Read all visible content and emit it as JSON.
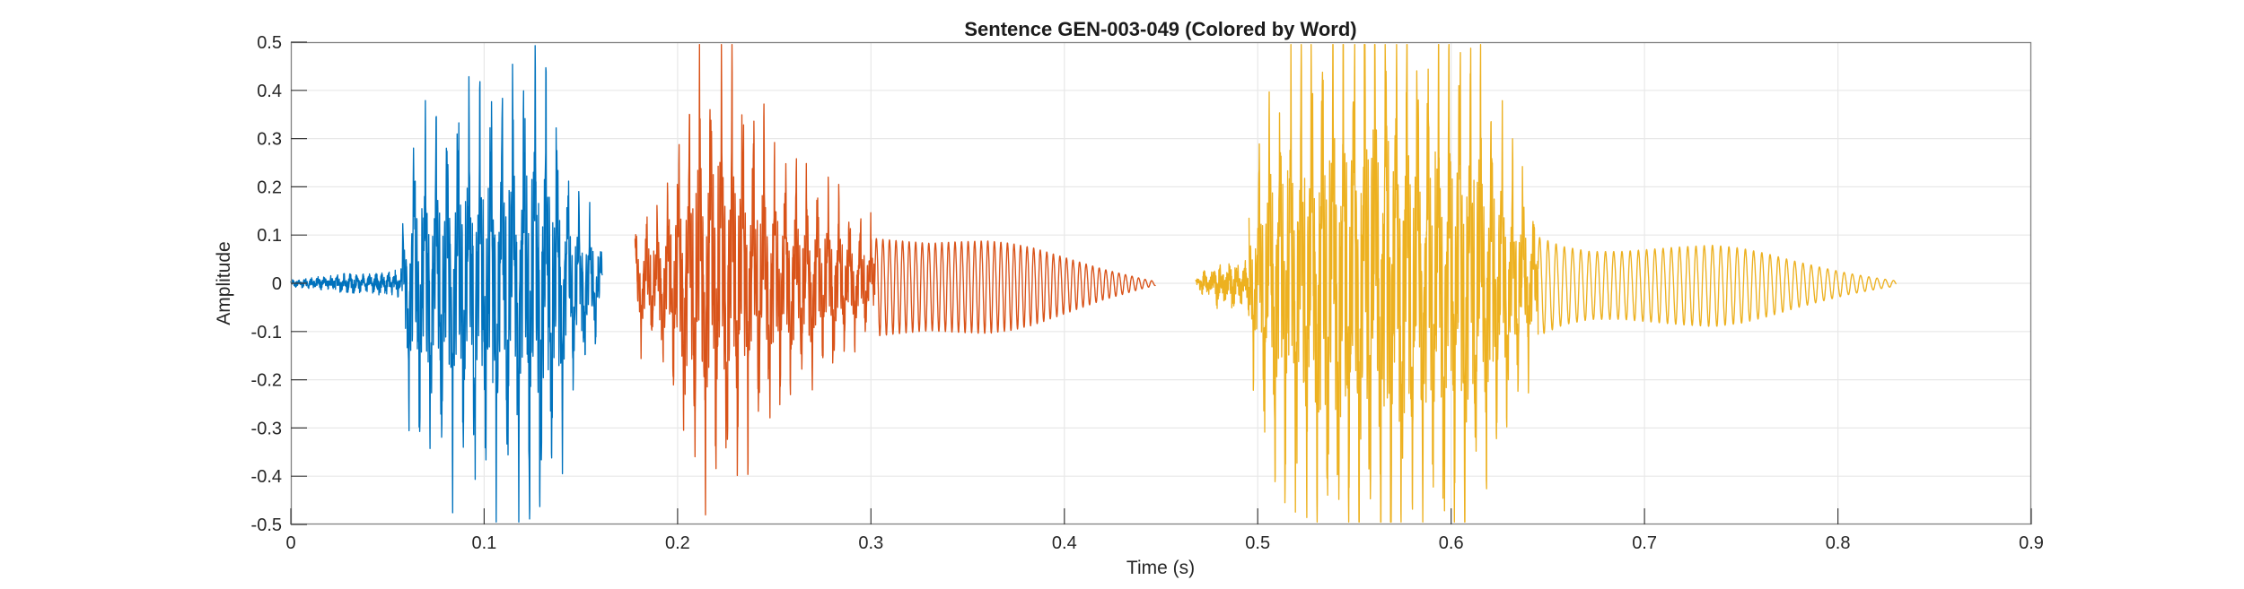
{
  "title": "Sentence GEN-003-049 (Colored by Word)",
  "axes": {
    "xlabel": "Time (s)",
    "ylabel": "Amplitude",
    "xlim": [
      0,
      0.9
    ],
    "ylim": [
      -0.5,
      0.5
    ],
    "xtick_values": [
      0,
      0.1,
      0.2,
      0.3,
      0.4,
      0.5,
      0.6,
      0.7,
      0.8,
      0.9
    ],
    "xtick_labels": [
      "0",
      "0.1",
      "0.2",
      "0.3",
      "0.4",
      "0.5",
      "0.6",
      "0.7",
      "0.8",
      "0.9"
    ],
    "ytick_values": [
      -0.5,
      -0.4,
      -0.3,
      -0.2,
      -0.1,
      0,
      0.1,
      0.2,
      0.3,
      0.4,
      0.5
    ],
    "ytick_labels": [
      "-0.5",
      "-0.4",
      "-0.3",
      "-0.2",
      "-0.1",
      "0",
      "0.1",
      "0.2",
      "0.3",
      "0.4",
      "0.5"
    ],
    "grid": "on"
  },
  "colors": {
    "background": "#ffffff",
    "box": "#818181",
    "tick": "#3b3b3b",
    "grid": "#e8e8e8",
    "label": "#262626",
    "title": "#1c1c1c",
    "word_1": "#0072BD",
    "word_2": "#D95319",
    "word_3": "#EDB120"
  },
  "chart_data": {
    "type": "line",
    "subtype": "audio-waveform",
    "title": "Sentence GEN-003-049 (Colored by Word)",
    "xlabel": "Time (s)",
    "ylabel": "Amplitude",
    "xlim": [
      0,
      0.9
    ],
    "ylim": [
      -0.5,
      0.5
    ],
    "grid": "on",
    "legend": "none",
    "sample_rate_render": 9000,
    "series": [
      {
        "name": "word_1",
        "color": "#0072BD",
        "t_start": 0.0,
        "t_end": 0.161,
        "peak_amplitude": 0.39,
        "min_amplitude": -0.41,
        "parts": [
          {
            "kind": "noise",
            "t0": 0.0,
            "t1": 0.057,
            "f": 300,
            "phase": 0.2,
            "seed": 11,
            "neg": 1.0,
            "env": [
              [
                0.0,
                0.006
              ],
              [
                0.008,
                0.009
              ],
              [
                0.015,
                0.012
              ],
              [
                0.022,
                0.016
              ],
              [
                0.03,
                0.019
              ],
              [
                0.038,
                0.016
              ],
              [
                0.045,
                0.02
              ],
              [
                0.051,
                0.022
              ],
              [
                0.057,
                0.028
              ]
            ]
          },
          {
            "kind": "voiced",
            "t0": 0.057,
            "t1": 0.161,
            "f0": 176,
            "phase": 0.4,
            "seed": 23,
            "neg": 1.06,
            "env": [
              [
                0.057,
                0.05
              ],
              [
                0.06,
                0.18
              ],
              [
                0.064,
                0.27
              ],
              [
                0.07,
                0.26
              ],
              [
                0.078,
                0.28
              ],
              [
                0.088,
                0.3
              ],
              [
                0.098,
                0.31
              ],
              [
                0.108,
                0.35
              ],
              [
                0.118,
                0.33
              ],
              [
                0.124,
                0.38
              ],
              [
                0.129,
                0.39
              ],
              [
                0.134,
                0.31
              ],
              [
                0.14,
                0.24
              ],
              [
                0.146,
                0.17
              ],
              [
                0.152,
                0.13
              ],
              [
                0.157,
                0.11
              ],
              [
                0.161,
                0.06
              ]
            ]
          }
        ]
      },
      {
        "name": "word_2",
        "color": "#D95319",
        "t_start": 0.178,
        "t_end": 0.447,
        "peak_amplitude": 0.4,
        "min_amplitude": -0.36,
        "parts": [
          {
            "kind": "voiced",
            "t0": 0.178,
            "t1": 0.302,
            "f0": 181,
            "phase": 1.1,
            "seed": 37,
            "neg": 0.88,
            "env": [
              [
                0.178,
                0.1
              ],
              [
                0.183,
                0.12
              ],
              [
                0.188,
                0.11
              ],
              [
                0.193,
                0.16
              ],
              [
                0.199,
                0.22
              ],
              [
                0.205,
                0.3
              ],
              [
                0.211,
                0.36
              ],
              [
                0.216,
                0.4
              ],
              [
                0.221,
                0.37
              ],
              [
                0.227,
                0.39
              ],
              [
                0.233,
                0.33
              ],
              [
                0.239,
                0.28
              ],
              [
                0.246,
                0.26
              ],
              [
                0.253,
                0.22
              ],
              [
                0.261,
                0.2
              ],
              [
                0.27,
                0.18
              ],
              [
                0.279,
                0.16
              ],
              [
                0.288,
                0.13
              ],
              [
                0.296,
                0.11
              ],
              [
                0.302,
                0.1
              ]
            ]
          },
          {
            "kind": "tone",
            "t0": 0.302,
            "t1": 0.447,
            "f": 295,
            "phase": 0.0,
            "seed": 41,
            "neg": 1.12,
            "env": [
              [
                0.302,
                0.095
              ],
              [
                0.315,
                0.09
              ],
              [
                0.33,
                0.085
              ],
              [
                0.345,
                0.088
              ],
              [
                0.36,
                0.09
              ],
              [
                0.372,
                0.085
              ],
              [
                0.384,
                0.075
              ],
              [
                0.396,
                0.06
              ],
              [
                0.408,
                0.045
              ],
              [
                0.42,
                0.03
              ],
              [
                0.432,
                0.018
              ],
              [
                0.441,
                0.009
              ],
              [
                0.447,
                0.004
              ]
            ]
          }
        ]
      },
      {
        "name": "word_3",
        "color": "#EDB120",
        "t_start": 0.468,
        "t_end": 0.83,
        "peak_amplitude": 0.48,
        "min_amplitude": -0.47,
        "parts": [
          {
            "kind": "noise",
            "t0": 0.468,
            "t1": 0.4955,
            "f": 240,
            "phase": 0.9,
            "seed": 53,
            "neg": 1.2,
            "env": [
              [
                0.468,
                0.008
              ],
              [
                0.4715,
                0.025
              ],
              [
                0.475,
                0.018
              ],
              [
                0.479,
                0.04
              ],
              [
                0.483,
                0.028
              ],
              [
                0.487,
                0.045
              ],
              [
                0.491,
                0.035
              ],
              [
                0.4955,
                0.05
              ]
            ]
          },
          {
            "kind": "voiced",
            "t0": 0.4955,
            "t1": 0.645,
            "f0": 183,
            "phase": 2.0,
            "seed": 67,
            "neg": 0.97,
            "env": [
              [
                0.4955,
                0.12
              ],
              [
                0.5,
                0.22
              ],
              [
                0.505,
                0.3
              ],
              [
                0.511,
                0.34
              ],
              [
                0.518,
                0.38
              ],
              [
                0.526,
                0.42
              ],
              [
                0.534,
                0.44
              ],
              [
                0.543,
                0.43
              ],
              [
                0.552,
                0.45
              ],
              [
                0.561,
                0.47
              ],
              [
                0.567,
                0.48
              ],
              [
                0.574,
                0.45
              ],
              [
                0.582,
                0.41
              ],
              [
                0.59,
                0.4
              ],
              [
                0.598,
                0.42
              ],
              [
                0.606,
                0.43
              ],
              [
                0.613,
                0.38
              ],
              [
                0.621,
                0.32
              ],
              [
                0.629,
                0.25
              ],
              [
                0.637,
                0.18
              ],
              [
                0.645,
                0.11
              ]
            ]
          },
          {
            "kind": "tone",
            "t0": 0.645,
            "t1": 0.83,
            "f": 235,
            "phase": 0.3,
            "seed": 71,
            "neg": 1.15,
            "env": [
              [
                0.645,
                0.095
              ],
              [
                0.658,
                0.075
              ],
              [
                0.672,
                0.065
              ],
              [
                0.688,
                0.065
              ],
              [
                0.704,
                0.07
              ],
              [
                0.72,
                0.075
              ],
              [
                0.736,
                0.078
              ],
              [
                0.75,
                0.072
              ],
              [
                0.764,
                0.06
              ],
              [
                0.778,
                0.045
              ],
              [
                0.792,
                0.032
              ],
              [
                0.806,
                0.02
              ],
              [
                0.818,
                0.012
              ],
              [
                0.83,
                0.005
              ]
            ]
          }
        ]
      }
    ]
  }
}
